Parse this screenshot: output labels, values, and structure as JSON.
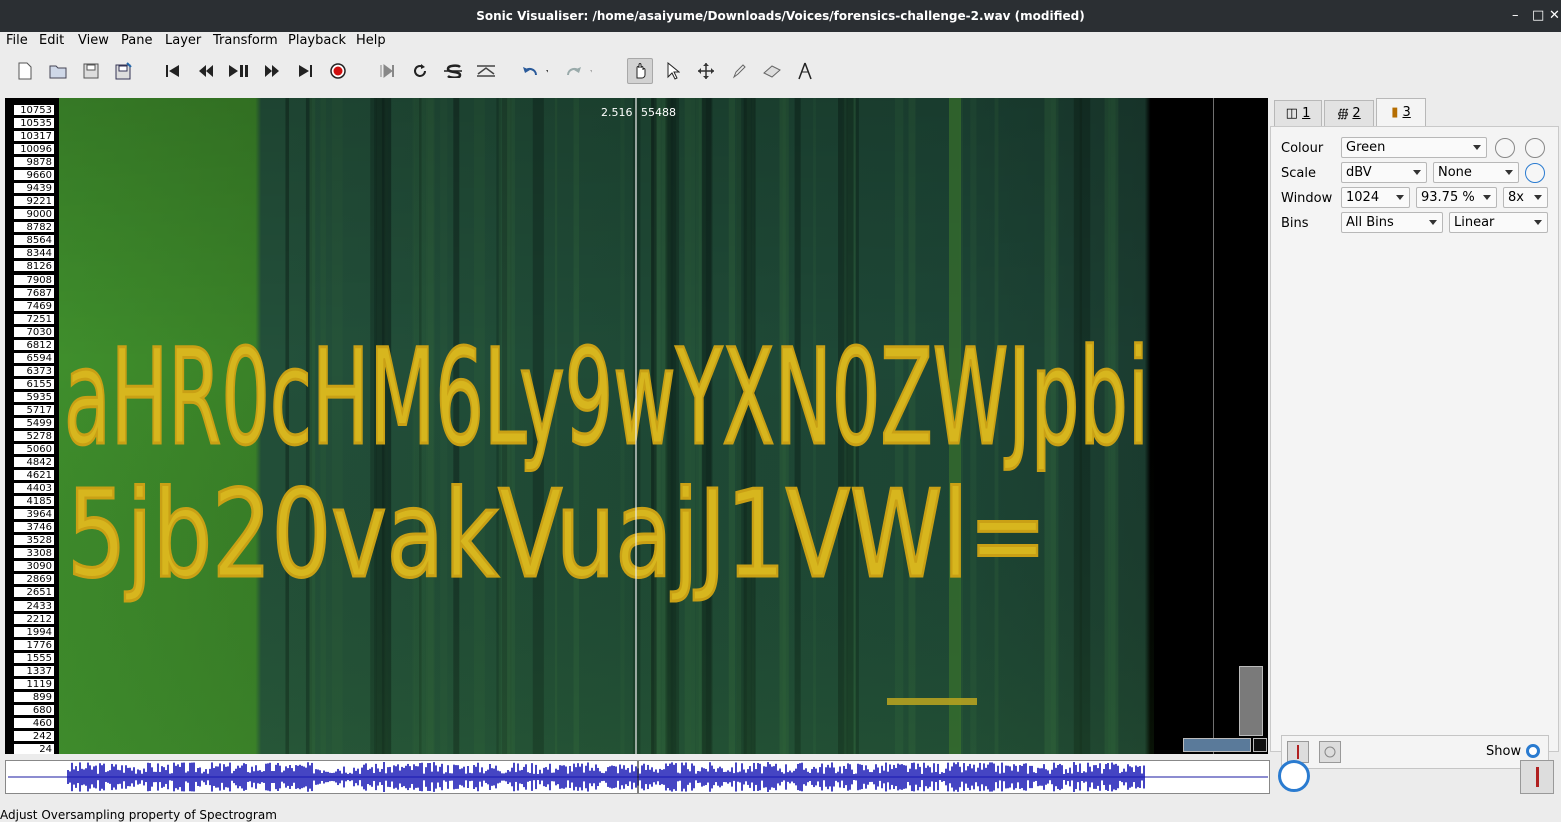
{
  "window": {
    "title": "Sonic Visualiser: /home/asaiyume/Downloads/Voices/forensics-challenge-2.wav (modified)"
  },
  "menu": [
    "File",
    "Edit",
    "View",
    "Pane",
    "Layer",
    "Transform",
    "Playback",
    "Help"
  ],
  "toolbar": {
    "icons": [
      "new-document-icon",
      "open-folder-icon",
      "save-icon",
      "save-as-icon",
      "rewind-start-icon",
      "rewind-icon",
      "play-pause-icon",
      "fast-forward-icon",
      "fast-forward-end-icon",
      "record-icon",
      "constrain-playback-icon",
      "loop-icon",
      "solo-icon",
      "align-icon",
      "undo-icon",
      "redo-icon",
      "navigate-tool-icon",
      "select-tool-icon",
      "move-tool-icon",
      "draw-tool-icon",
      "erase-tool-icon",
      "measure-tool-icon"
    ],
    "active_tool": "navigate-tool-icon"
  },
  "pane": {
    "freq_scale": [
      "10753",
      "10535",
      "10317",
      "10096",
      "9878",
      "9660",
      "9439",
      "9221",
      "9000",
      "8782",
      "8564",
      "8344",
      "8126",
      "7908",
      "7687",
      "7469",
      "7251",
      "7030",
      "6812",
      "6594",
      "6373",
      "6155",
      "5935",
      "5717",
      "5499",
      "5278",
      "5060",
      "4842",
      "4621",
      "4403",
      "4185",
      "3964",
      "3746",
      "3528",
      "3308",
      "3090",
      "2869",
      "2651",
      "2433",
      "2212",
      "1994",
      "1776",
      "1555",
      "1337",
      "1119",
      "899",
      "680",
      "460",
      "242",
      "24"
    ],
    "cursor_time": "2.516",
    "cursor_frame": "55488",
    "spectrogram_text_line1": "aHR0cHM6Ly9wYXN0ZWJpbi",
    "spectrogram_text_line2": "5jb20vakVuajJ1VWl=",
    "colors": {
      "background_green": "#3f8a2a",
      "dark_band": "#1e4a3c",
      "text_yellow": "#d8b820"
    }
  },
  "layer_tabs": [
    {
      "label": "1",
      "icon": "pane-icon"
    },
    {
      "label": "2",
      "icon": "waveform-icon"
    },
    {
      "label": "3",
      "icon": "spectrogram-icon",
      "active": true
    }
  ],
  "properties": {
    "colour_label": "Colour",
    "colour_value": "Green",
    "scale_label": "Scale",
    "scale_value": "dBV",
    "normalize_value": "None",
    "window_label": "Window",
    "window_size": "1024",
    "window_overlap": "93.75 %",
    "oversampling": "8x",
    "bins_label": "Bins",
    "bins_value": "All Bins",
    "bins_scale": "Linear",
    "show_label": "Show"
  },
  "status": {
    "message": "Adjust Oversampling property of Spectrogram"
  }
}
